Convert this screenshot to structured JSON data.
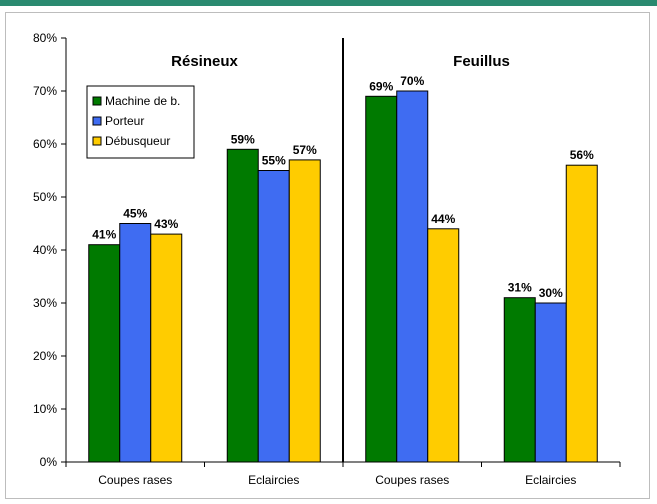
{
  "colors": {
    "machine": "#007a00",
    "porteur": "#3f6cf2",
    "debusqueur": "#ffcc00",
    "header_strip": "#2a8a70"
  },
  "chart_data": {
    "type": "bar",
    "ylim": [
      0,
      80
    ],
    "yticks": [
      0,
      10,
      20,
      30,
      40,
      50,
      60,
      70,
      80
    ],
    "ytick_labels": [
      "0%",
      "10%",
      "20%",
      "30%",
      "40%",
      "50%",
      "60%",
      "70%",
      "80%"
    ],
    "grid": false,
    "legend_position": "top-left",
    "categories": [
      "Coupes rases",
      "Eclaircies",
      "Coupes rases",
      "Eclaircies"
    ],
    "panels": [
      {
        "title": "Résineux",
        "category_indices": [
          0,
          1
        ]
      },
      {
        "title": "Feuillus",
        "category_indices": [
          2,
          3
        ]
      }
    ],
    "series": [
      {
        "name": "Machine de b.",
        "values": [
          41,
          59,
          69,
          31
        ],
        "labels": [
          "41%",
          "59%",
          "69%",
          "31%"
        ]
      },
      {
        "name": "Porteur",
        "values": [
          45,
          55,
          70,
          30
        ],
        "labels": [
          "45%",
          "55%",
          "70%",
          "30%"
        ]
      },
      {
        "name": "Débusqueur",
        "values": [
          43,
          57,
          44,
          56
        ],
        "labels": [
          "43%",
          "57%",
          "44%",
          "56%"
        ]
      }
    ]
  }
}
